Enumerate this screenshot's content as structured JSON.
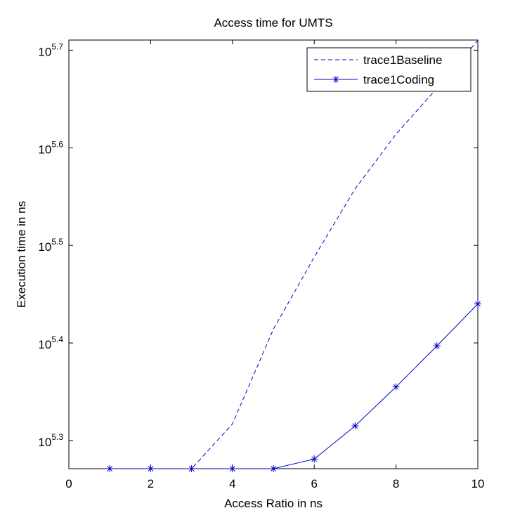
{
  "chart_data": {
    "type": "line",
    "title": "Access time for UMTS",
    "x_label": "Access Ratio in ns",
    "y_label": "Execution time in ns",
    "yscale": "log",
    "xlim": [
      0,
      10
    ],
    "xticks": [
      0,
      2,
      4,
      6,
      8,
      10
    ],
    "ylim": [
      186700,
      513300
    ],
    "yticks": [
      {
        "value": 199526,
        "label": "10^5.3"
      },
      {
        "value": 251189,
        "label": "10^5.4"
      },
      {
        "value": 316228,
        "label": "10^5.5"
      },
      {
        "value": 398107,
        "label": "10^5.6"
      },
      {
        "value": 501187,
        "label": "10^5.7"
      }
    ],
    "legend": "upper right",
    "x": [
      1,
      2,
      3,
      4,
      5,
      6,
      7,
      8,
      9,
      10
    ],
    "series": [
      {
        "name": "trace1Baseline",
        "color": "#0000cc",
        "linestyle": "dashed",
        "marker": "none",
        "values": [
          186700,
          186700,
          186700,
          207500,
          259400,
          307600,
          361400,
          411100,
          458100,
          512900
        ]
      },
      {
        "name": "trace1Coding",
        "color": "#0000cc",
        "linestyle": "solid",
        "marker": "star",
        "values": [
          186700,
          186700,
          186700,
          186700,
          186700,
          190985,
          206538,
          226464,
          249459,
          275423
        ]
      }
    ]
  }
}
